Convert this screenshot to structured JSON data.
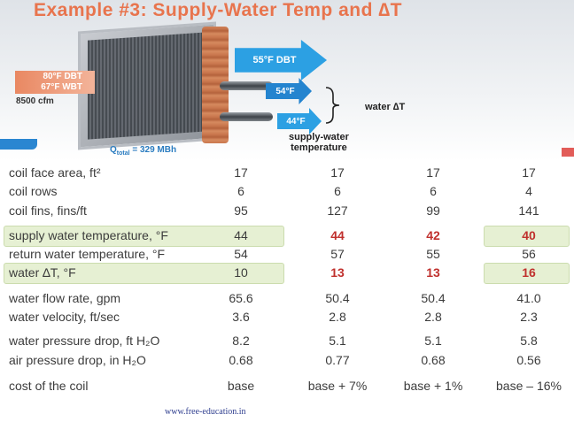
{
  "title": "Example #3: Supply-Water Temp and ∆T",
  "figure": {
    "inlet_dbt": "80°F DBT",
    "inlet_wbt": "67°F WBT",
    "airflow": "8500 cfm",
    "leaving_air": "55°F DBT",
    "return_water": "54°F",
    "supply_water": "44°F",
    "water_dt_label": "water ∆T",
    "supply_water_label_line1": "supply-water",
    "supply_water_label_line2": "temperature",
    "qtotal_symbol": "Q",
    "qtotal_sub": "total",
    "qtotal_value": " = 329 MBh"
  },
  "table": {
    "rows": [
      {
        "label": "coil face area, ft²",
        "values": [
          "17",
          "17",
          "17",
          "17"
        ]
      },
      {
        "label": "coil rows",
        "values": [
          "6",
          "6",
          "6",
          "4"
        ]
      },
      {
        "label": "coil fins, fins/ft",
        "values": [
          "95",
          "127",
          "99",
          "141"
        ]
      },
      {
        "label": "supply water temperature, °F",
        "values": [
          "44",
          "44",
          "42",
          "40"
        ]
      },
      {
        "label": "return water temperature, °F",
        "values": [
          "54",
          "57",
          "55",
          "56"
        ]
      },
      {
        "label": "water ∆T, °F",
        "values": [
          "10",
          "13",
          "13",
          "16"
        ]
      },
      {
        "label": "water flow rate, gpm",
        "values": [
          "65.6",
          "50.4",
          "50.4",
          "41.0"
        ]
      },
      {
        "label": "water velocity, ft/sec",
        "values": [
          "3.6",
          "2.8",
          "2.8",
          "2.3"
        ]
      },
      {
        "label": "water pressure drop, ft H₂O",
        "values": [
          "8.2",
          "5.1",
          "5.1",
          "5.8"
        ]
      },
      {
        "label": "air pressure drop, in H₂O",
        "values": [
          "0.68",
          "0.77",
          "0.68",
          "0.56"
        ]
      },
      {
        "label": "cost of the coil",
        "values": [
          "base",
          "base + 7%",
          "base + 1%",
          "base – 16%"
        ]
      }
    ]
  },
  "footer": {
    "text": "www.free-education.in"
  },
  "colors": {
    "title": "#e8744d",
    "arrow_blue": "#2ca0e3",
    "highlight_green": "#e6f0d3",
    "emphasis_red": "#c0302d"
  }
}
